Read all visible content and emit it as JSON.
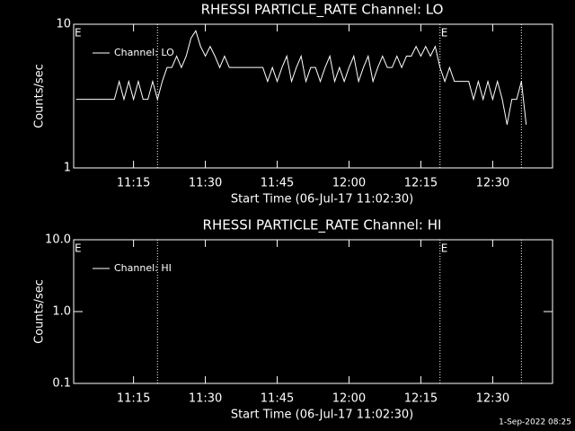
{
  "chart_data": [
    {
      "type": "line",
      "title": "RHESSI PARTICLE_RATE Channel: LO",
      "xlabel": "Start Time (06-Jul-17 11:02:30)",
      "ylabel": "Counts/sec",
      "log_y": true,
      "legend": "top-left",
      "xlim": [
        "11:02:30",
        "12:42:30"
      ],
      "xticks": [
        "11:15",
        "11:30",
        "11:45",
        "12:00",
        "12:15",
        "12:30"
      ],
      "ylim": [
        1,
        10
      ],
      "yticks": [
        1,
        10
      ],
      "markers": [
        "11:20",
        "12:19",
        "12:36"
      ],
      "annotations": [
        {
          "text": "E",
          "x": "11:02:30"
        },
        {
          "text": "E",
          "x": "12:19"
        }
      ],
      "x": [
        "11:03",
        "11:04",
        "11:05",
        "11:06",
        "11:07",
        "11:08",
        "11:09",
        "11:10",
        "11:11",
        "11:12",
        "11:13",
        "11:14",
        "11:15",
        "11:16",
        "11:17",
        "11:18",
        "11:19",
        "11:20",
        "11:21",
        "11:22",
        "11:23",
        "11:24",
        "11:25",
        "11:26",
        "11:27",
        "11:28",
        "11:29",
        "11:30",
        "11:31",
        "11:32",
        "11:33",
        "11:34",
        "11:35",
        "11:36",
        "11:37",
        "11:38",
        "11:39",
        "11:40",
        "11:41",
        "11:42",
        "11:43",
        "11:44",
        "11:45",
        "11:46",
        "11:47",
        "11:48",
        "11:49",
        "11:50",
        "11:51",
        "11:52",
        "11:53",
        "11:54",
        "11:55",
        "11:56",
        "11:57",
        "11:58",
        "11:59",
        "12:00",
        "12:01",
        "12:02",
        "12:03",
        "12:04",
        "12:05",
        "12:06",
        "12:07",
        "12:08",
        "12:09",
        "12:10",
        "12:11",
        "12:12",
        "12:13",
        "12:14",
        "12:15",
        "12:16",
        "12:17",
        "12:18",
        "12:19",
        "12:20",
        "12:21",
        "12:22",
        "12:23",
        "12:24",
        "12:25",
        "12:26",
        "12:27",
        "12:28",
        "12:29",
        "12:30",
        "12:31",
        "12:32",
        "12:33",
        "12:34",
        "12:35",
        "12:36",
        "12:37"
      ],
      "series": [
        {
          "name": "Channel: LO",
          "color": "#ffffff",
          "values": [
            3,
            3,
            3,
            3,
            3,
            3,
            3,
            3,
            3,
            4,
            3,
            4,
            3,
            4,
            3,
            3,
            4,
            3,
            4,
            5,
            5,
            6,
            5,
            6,
            8,
            9,
            7,
            6,
            7,
            6,
            5,
            6,
            5,
            5,
            5,
            5,
            5,
            5,
            5,
            5,
            4,
            5,
            4,
            5,
            6,
            4,
            5,
            6,
            4,
            5,
            5,
            4,
            5,
            6,
            4,
            5,
            4,
            5,
            6,
            4,
            5,
            6,
            4,
            5,
            6,
            5,
            5,
            6,
            5,
            6,
            6,
            7,
            6,
            7,
            6,
            7,
            5,
            4,
            5,
            4,
            4,
            4,
            4,
            3,
            4,
            3,
            4,
            3,
            4,
            3,
            2,
            3,
            3,
            4,
            2
          ]
        }
      ]
    },
    {
      "type": "line",
      "title": "RHESSI PARTICLE_RATE Channel: HI",
      "xlabel": "Start Time (06-Jul-17 11:02:30)",
      "ylabel": "Counts/sec",
      "log_y": true,
      "legend": "top-left",
      "xlim": [
        "11:02:30",
        "12:42:30"
      ],
      "xticks": [
        "11:15",
        "11:30",
        "11:45",
        "12:00",
        "12:15",
        "12:30"
      ],
      "ylim": [
        0.1,
        10
      ],
      "yticks": [
        0.1,
        {
          "value": 1,
          "label": "1.0"
        },
        {
          "value": 10,
          "label": "10.0"
        }
      ],
      "markers": [
        "11:20",
        "12:19",
        "12:36"
      ],
      "annotations": [
        {
          "text": "E",
          "x": "11:02:30"
        },
        {
          "text": "E",
          "x": "12:19"
        }
      ],
      "x": [],
      "series": [
        {
          "name": "Channel: HI",
          "color": "#ffffff",
          "values": []
        }
      ]
    }
  ],
  "footer": "1-Sep-2022 08:25"
}
